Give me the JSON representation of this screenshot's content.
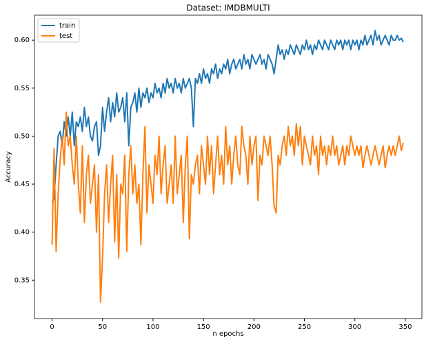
{
  "chart_data": {
    "type": "line",
    "title": "Dataset: IMDBMULTI",
    "x_label": "n epochs",
    "y_label": "Accuracy",
    "x": [
      0,
      2,
      4,
      6,
      8,
      10,
      12,
      14,
      16,
      18,
      20,
      22,
      24,
      26,
      28,
      30,
      32,
      34,
      36,
      38,
      40,
      42,
      44,
      46,
      48,
      50,
      52,
      54,
      56,
      58,
      60,
      62,
      64,
      66,
      68,
      70,
      72,
      74,
      76,
      78,
      80,
      82,
      84,
      86,
      88,
      90,
      92,
      94,
      96,
      98,
      100,
      102,
      104,
      106,
      108,
      110,
      112,
      114,
      116,
      118,
      120,
      122,
      124,
      126,
      128,
      130,
      132,
      134,
      136,
      138,
      140,
      142,
      144,
      146,
      148,
      150,
      152,
      154,
      156,
      158,
      160,
      162,
      164,
      166,
      168,
      170,
      172,
      174,
      176,
      178,
      180,
      182,
      184,
      186,
      188,
      190,
      192,
      194,
      196,
      198,
      200,
      202,
      204,
      206,
      208,
      210,
      212,
      214,
      216,
      218,
      220,
      222,
      224,
      226,
      228,
      230,
      232,
      234,
      236,
      238,
      240,
      242,
      244,
      246,
      248,
      250,
      252,
      254,
      256,
      258,
      260,
      262,
      264,
      266,
      268,
      270,
      272,
      274,
      276,
      278,
      280,
      282,
      284,
      286,
      288,
      290,
      292,
      294,
      296,
      298,
      300,
      302,
      304,
      306,
      308,
      310,
      312,
      314,
      316,
      318,
      320,
      322,
      324,
      326,
      328,
      330,
      332,
      334,
      336,
      338,
      340,
      342,
      344,
      346,
      348
    ],
    "series": [
      {
        "name": "train",
        "color": "#1f77b4",
        "values": [
          0.431,
          0.435,
          0.47,
          0.5,
          0.505,
          0.49,
          0.515,
          0.5,
          0.52,
          0.5,
          0.525,
          0.49,
          0.515,
          0.51,
          0.52,
          0.505,
          0.53,
          0.51,
          0.52,
          0.5,
          0.495,
          0.51,
          0.515,
          0.48,
          0.49,
          0.53,
          0.505,
          0.525,
          0.54,
          0.515,
          0.535,
          0.52,
          0.545,
          0.525,
          0.53,
          0.54,
          0.515,
          0.545,
          0.49,
          0.53,
          0.535,
          0.545,
          0.525,
          0.55,
          0.53,
          0.545,
          0.54,
          0.55,
          0.535,
          0.545,
          0.54,
          0.555,
          0.545,
          0.55,
          0.54,
          0.555,
          0.545,
          0.56,
          0.55,
          0.555,
          0.545,
          0.56,
          0.55,
          0.555,
          0.545,
          0.56,
          0.55,
          0.555,
          0.56,
          0.55,
          0.51,
          0.56,
          0.555,
          0.565,
          0.555,
          0.57,
          0.56,
          0.565,
          0.555,
          0.57,
          0.565,
          0.575,
          0.56,
          0.57,
          0.565,
          0.575,
          0.57,
          0.58,
          0.565,
          0.575,
          0.58,
          0.57,
          0.575,
          0.58,
          0.57,
          0.585,
          0.575,
          0.58,
          0.57,
          0.585,
          0.58,
          0.575,
          0.58,
          0.585,
          0.575,
          0.58,
          0.57,
          0.585,
          0.58,
          0.575,
          0.565,
          0.58,
          0.595,
          0.585,
          0.59,
          0.58,
          0.59,
          0.585,
          0.595,
          0.59,
          0.585,
          0.595,
          0.59,
          0.585,
          0.595,
          0.59,
          0.6,
          0.59,
          0.595,
          0.585,
          0.595,
          0.59,
          0.6,
          0.595,
          0.59,
          0.6,
          0.595,
          0.59,
          0.6,
          0.595,
          0.59,
          0.6,
          0.595,
          0.6,
          0.59,
          0.6,
          0.595,
          0.6,
          0.59,
          0.6,
          0.595,
          0.6,
          0.59,
          0.6,
          0.595,
          0.605,
          0.595,
          0.6,
          0.605,
          0.595,
          0.61,
          0.6,
          0.605,
          0.595,
          0.6,
          0.605,
          0.6,
          0.595,
          0.605,
          0.6,
          0.6,
          0.605,
          0.6,
          0.602,
          0.598
        ]
      },
      {
        "name": "test",
        "color": "#ff7f0e",
        "values": [
          0.387,
          0.487,
          0.38,
          0.44,
          0.475,
          0.5,
          0.47,
          0.525,
          0.49,
          0.5,
          0.47,
          0.45,
          0.5,
          0.45,
          0.42,
          0.49,
          0.41,
          0.46,
          0.48,
          0.43,
          0.45,
          0.47,
          0.4,
          0.46,
          0.327,
          0.373,
          0.44,
          0.47,
          0.41,
          0.45,
          0.48,
          0.39,
          0.46,
          0.373,
          0.45,
          0.44,
          0.48,
          0.38,
          0.46,
          0.49,
          0.44,
          0.47,
          0.43,
          0.45,
          0.387,
          0.46,
          0.51,
          0.42,
          0.47,
          0.45,
          0.43,
          0.48,
          0.46,
          0.5,
          0.44,
          0.47,
          0.49,
          0.43,
          0.45,
          0.47,
          0.43,
          0.5,
          0.44,
          0.46,
          0.48,
          0.41,
          0.47,
          0.5,
          0.393,
          0.46,
          0.45,
          0.47,
          0.48,
          0.44,
          0.49,
          0.47,
          0.45,
          0.5,
          0.46,
          0.49,
          0.44,
          0.47,
          0.5,
          0.46,
          0.48,
          0.45,
          0.51,
          0.47,
          0.49,
          0.45,
          0.48,
          0.5,
          0.47,
          0.46,
          0.51,
          0.49,
          0.48,
          0.45,
          0.5,
          0.47,
          0.49,
          0.5,
          0.433,
          0.48,
          0.47,
          0.5,
          0.49,
          0.48,
          0.5,
          0.47,
          0.427,
          0.42,
          0.48,
          0.47,
          0.49,
          0.5,
          0.48,
          0.51,
          0.49,
          0.5,
          0.48,
          0.513,
          0.49,
          0.51,
          0.47,
          0.5,
          0.49,
          0.48,
          0.47,
          0.5,
          0.48,
          0.49,
          0.46,
          0.5,
          0.48,
          0.49,
          0.47,
          0.49,
          0.48,
          0.5,
          0.48,
          0.49,
          0.47,
          0.48,
          0.49,
          0.47,
          0.49,
          0.48,
          0.5,
          0.49,
          0.48,
          0.49,
          0.48,
          0.49,
          0.467,
          0.48,
          0.49,
          0.48,
          0.47,
          0.48,
          0.49,
          0.48,
          0.47,
          0.48,
          0.49,
          0.467,
          0.48,
          0.49,
          0.48,
          0.49,
          0.48,
          0.49,
          0.5,
          0.485,
          0.493
        ]
      }
    ],
    "xlim": [
      -17.45,
      366.45
    ],
    "ylim": [
      0.31,
      0.626
    ],
    "xticks": [
      0,
      50,
      100,
      150,
      200,
      250,
      300,
      350
    ],
    "yticks": [
      0.35,
      {
        "value": 0.4,
        "label": "0.40"
      },
      0.45,
      {
        "value": 0.5,
        "label": "0.50"
      },
      0.55,
      {
        "value": 0.6,
        "label": "0.60"
      }
    ],
    "legend": "upper left",
    "grid": false
  }
}
